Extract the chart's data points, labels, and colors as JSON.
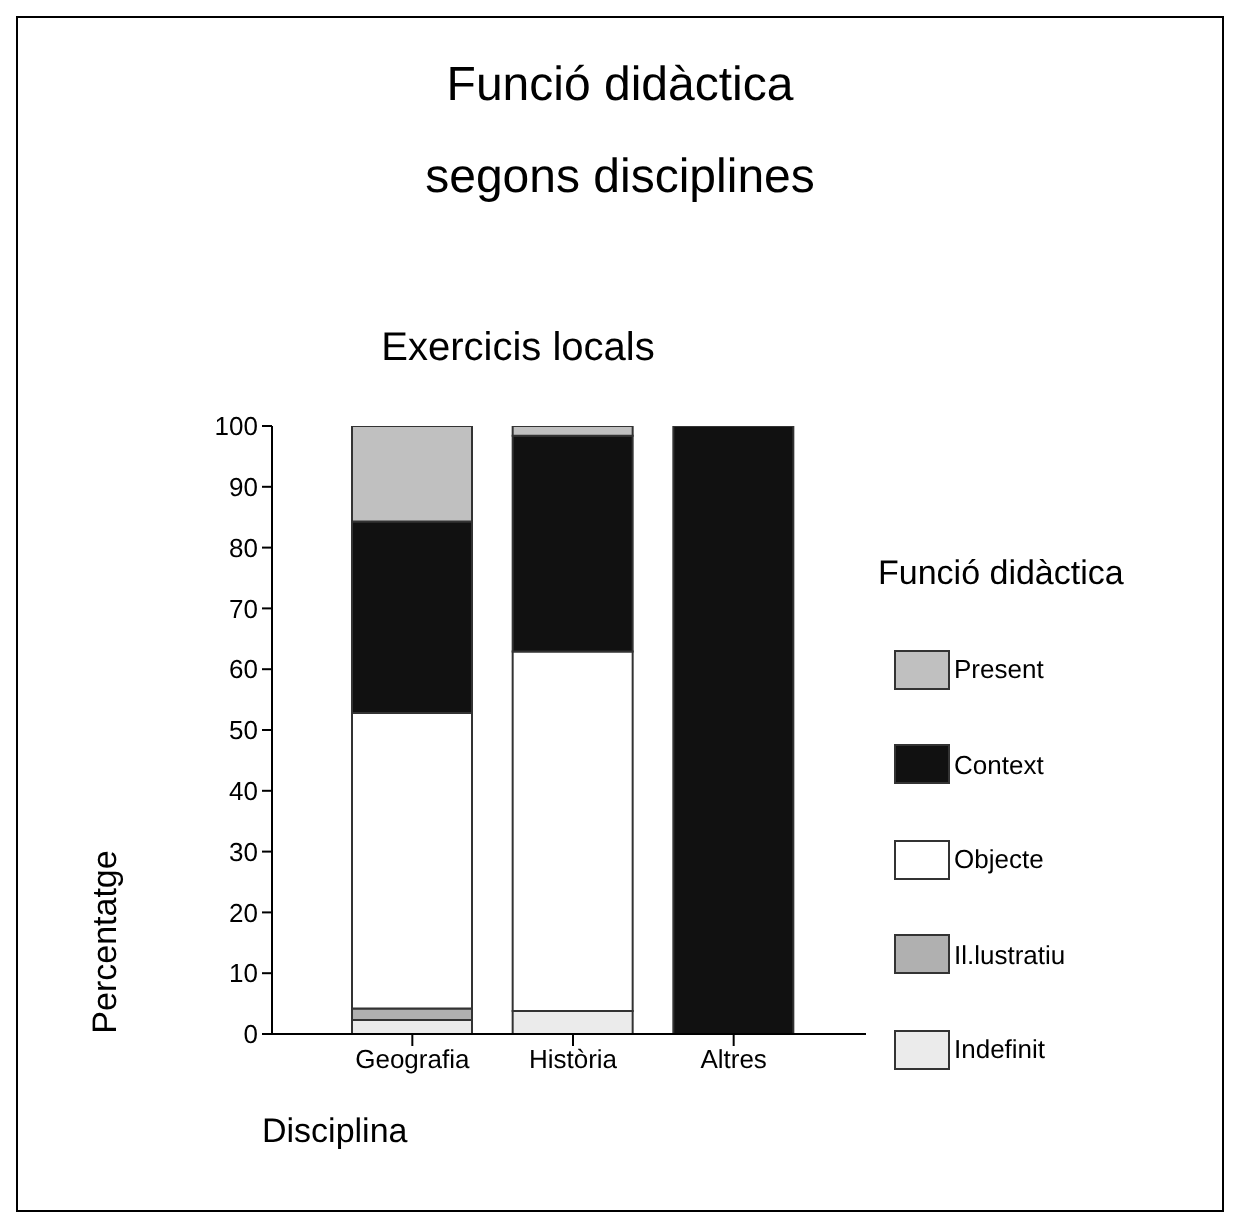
{
  "chart_data": {
    "type": "bar",
    "title": "Funció didàctica\nsegons disciplines",
    "subtitle": "Exercicis locals",
    "xlabel": "Disciplina",
    "ylabel": "Percentatge",
    "legend_title": "Funció didàctica",
    "categories": [
      "Geografia",
      "Història",
      "Altres"
    ],
    "stacked": true,
    "series": [
      {
        "name": "Indefinit",
        "color": "#ebebeb",
        "values": [
          2.3,
          3.8,
          0
        ]
      },
      {
        "name": "Il.lustratiu",
        "color": "#b0b0b0",
        "values": [
          1.9,
          0,
          0
        ]
      },
      {
        "name": "Objecte",
        "color": "#ffffff",
        "values": [
          48.6,
          59.1,
          0
        ]
      },
      {
        "name": "Context",
        "color": "#111111",
        "values": [
          31.5,
          35.5,
          100
        ]
      },
      {
        "name": "Present",
        "color": "#c0c0c0",
        "values": [
          15.7,
          1.6,
          0
        ]
      }
    ],
    "ylim": [
      0,
      100
    ],
    "yticks": [
      0,
      10,
      20,
      30,
      40,
      50,
      60,
      70,
      80,
      90,
      100
    ],
    "grid": false,
    "legend": "right"
  }
}
